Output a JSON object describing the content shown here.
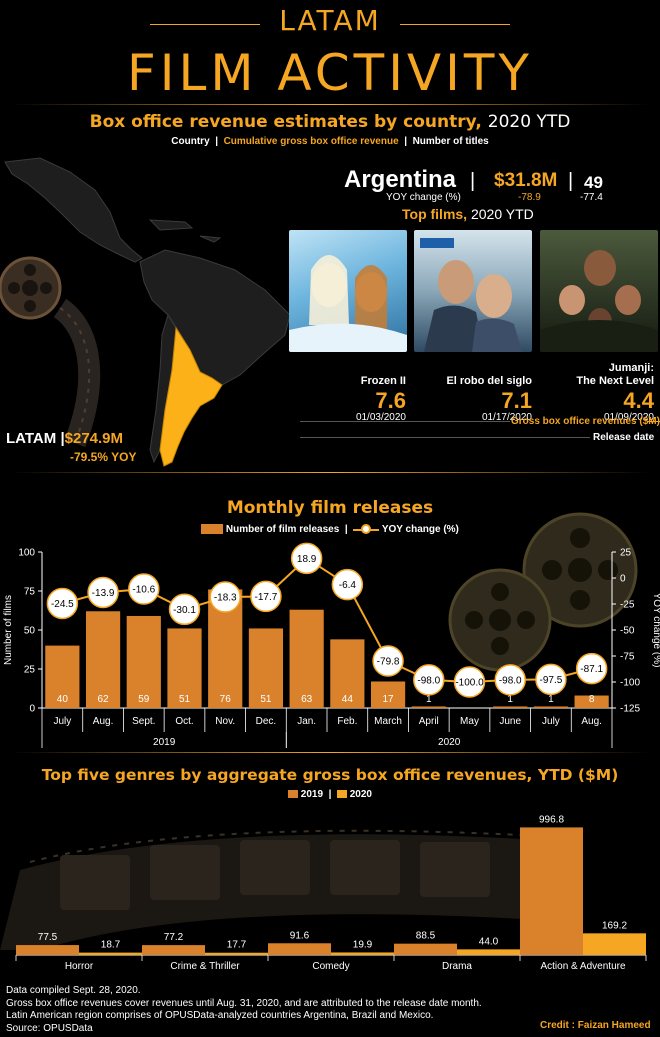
{
  "header": {
    "line1": "LATAM",
    "line2": "FILM ACTIVITY"
  },
  "revenue_section": {
    "title": "Box office revenue estimates by country,",
    "title_suffix": "2020 YTD",
    "legend_country": "Country",
    "legend_cumulative": "Cumulative gross box office revenue",
    "legend_titles": "Number of titles",
    "sep": "|"
  },
  "country": {
    "name": "Argentina",
    "revenue": "$31.8M",
    "titles": "49",
    "yoy_label": "YOY change (%)",
    "revenue_yoy": "-78.9",
    "titles_yoy": "-77.4"
  },
  "top_films": {
    "title": "Top films,",
    "title_suffix": "2020 YTD",
    "films": [
      {
        "name": "Frozen II",
        "revenue": "7.6",
        "date": "01/03/2020"
      },
      {
        "name": "El robo del siglo",
        "revenue": "7.1",
        "date": "01/17/2020"
      },
      {
        "name": "Jumanji:",
        "name2": "The Next Level",
        "revenue": "4.4",
        "date": "01/09/2020"
      }
    ],
    "key_revenue": "Gross box office revenues ($M)",
    "key_date": "Release date"
  },
  "latam": {
    "label": "LATAM",
    "sep": "|",
    "revenue": "$274.9M",
    "yoy": "-79.5% YOY"
  },
  "colors": {
    "accent": "#f5a623",
    "bar": "#d9822b",
    "bar2019": "#d9822b",
    "bar2020": "#f5a623",
    "argentina": "#fbb117"
  },
  "monthly": {
    "title": "Monthly film releases",
    "legend_bars": "Number of film releases",
    "legend_sep": "|",
    "legend_line": "YOY change (%)"
  },
  "genres": {
    "title": "Top five genres by aggregate gross box office revenues, YTD ($M)",
    "legend_2019": "2019",
    "legend_2020": "2020",
    "legend_sep": "|"
  },
  "chart_data": [
    {
      "type": "bar",
      "title": "Monthly film releases",
      "categories": [
        "July",
        "Aug.",
        "Sept.",
        "Oct.",
        "Nov.",
        "Dec.",
        "Jan.",
        "Feb.",
        "March",
        "April",
        "May",
        "June",
        "July",
        "Aug."
      ],
      "year_groups": [
        {
          "label": "2019",
          "start": 0,
          "end": 5
        },
        {
          "label": "2020",
          "start": 6,
          "end": 13
        }
      ],
      "series": [
        {
          "name": "Number of film releases",
          "type": "bar",
          "axis": "left",
          "values": [
            40,
            62,
            59,
            51,
            76,
            51,
            63,
            44,
            17,
            1,
            0,
            1,
            1,
            8
          ]
        },
        {
          "name": "YOY change (%)",
          "type": "line",
          "axis": "right",
          "values": [
            -24.5,
            -13.9,
            -10.6,
            -30.1,
            -18.3,
            -17.7,
            18.9,
            -6.4,
            -79.8,
            -98.0,
            -100.0,
            -98.0,
            -97.5,
            -87.1
          ]
        }
      ],
      "bar_labels": [
        "40",
        "62",
        "59",
        "51",
        "76",
        "51",
        "63",
        "44",
        "17",
        "1",
        "",
        "1",
        "1",
        "8"
      ],
      "line_labels": [
        "-24.5",
        "-13.9",
        "-10.6",
        "-30.1",
        "-18.3",
        "-17.7",
        "18.9",
        "-6.4",
        "-79.8",
        "-98.0",
        "-100.0",
        "-98.0",
        "-97.5",
        "-87.1"
      ],
      "ylabel": "Number of films",
      "y2label": "YOY change (%)",
      "ylim": [
        0,
        100
      ],
      "y2lim": [
        -125,
        25
      ],
      "yticks": [
        "0",
        "25",
        "50",
        "75",
        "100"
      ],
      "y2ticks": [
        "25",
        "0",
        "-25",
        "-50",
        "-75",
        "-100",
        "-125"
      ]
    },
    {
      "type": "bar",
      "title": "Top five genres by aggregate gross box office revenues, YTD ($M)",
      "categories": [
        "Horror",
        "Crime & Thriller",
        "Comedy",
        "Drama",
        "Action & Adventure"
      ],
      "series": [
        {
          "name": "2019",
          "values": [
            77.5,
            77.2,
            91.6,
            88.5,
            996.8
          ]
        },
        {
          "name": "2020",
          "values": [
            18.7,
            17.7,
            19.9,
            44.0,
            169.2
          ]
        }
      ],
      "labels_2019": [
        "77.5",
        "77.2",
        "91.6",
        "88.5",
        "996.8"
      ],
      "labels_2020": [
        "18.7",
        "17.7",
        "19.9",
        "44.0",
        "169.2"
      ],
      "ylim": [
        0,
        1000
      ]
    }
  ],
  "footer": {
    "lines": [
      "Data compiled Sept. 28, 2020.",
      "Gross box office revenues cover revenues until Aug. 31, 2020, and are attributed to the release date month.",
      "Latin American region comprises of OPUSData-analyzed countries Argentina, Brazil and Mexico.",
      "Source: OPUSData"
    ],
    "credit_label": "Credit :",
    "credit_name": "Faizan Hameed"
  }
}
